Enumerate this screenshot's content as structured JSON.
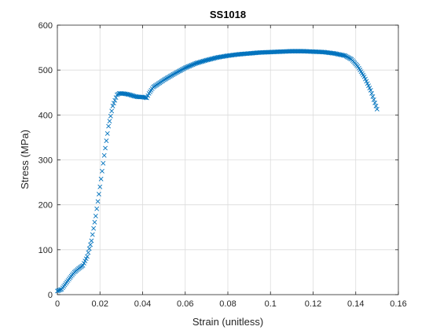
{
  "chart_data": {
    "type": "scatter",
    "title": "SS1018",
    "xlabel": "Strain (unitless)",
    "ylabel": "Stress (MPa)",
    "xlim": [
      0,
      0.16
    ],
    "ylim": [
      0,
      600
    ],
    "xticks": [
      0,
      0.02,
      0.04,
      0.06,
      0.08,
      0.1,
      0.12,
      0.14,
      0.16
    ],
    "xtick_labels": [
      "0",
      "0.02",
      "0.04",
      "0.06",
      "0.08",
      "0.1",
      "0.12",
      "0.14",
      "0.16"
    ],
    "yticks": [
      0,
      100,
      200,
      300,
      400,
      500,
      600
    ],
    "ytick_labels": [
      "0",
      "100",
      "200",
      "300",
      "400",
      "500",
      "600"
    ],
    "grid": true,
    "marker": "x",
    "color": "#0072BD",
    "x": [
      0.0,
      0.002,
      0.004,
      0.006,
      0.008,
      0.01,
      0.012,
      0.014,
      0.016,
      0.018,
      0.02,
      0.022,
      0.024,
      0.026,
      0.028,
      0.029,
      0.03,
      0.032,
      0.034,
      0.036,
      0.038,
      0.04,
      0.042,
      0.043,
      0.045,
      0.05,
      0.055,
      0.06,
      0.065,
      0.07,
      0.075,
      0.08,
      0.085,
      0.09,
      0.095,
      0.1,
      0.105,
      0.11,
      0.115,
      0.12,
      0.125,
      0.13,
      0.135,
      0.138,
      0.141,
      0.144,
      0.147,
      0.15
    ],
    "y": [
      8,
      12,
      25,
      38,
      50,
      58,
      65,
      85,
      120,
      175,
      240,
      310,
      375,
      420,
      445,
      448,
      448,
      447,
      445,
      442,
      440,
      440,
      438,
      448,
      462,
      478,
      492,
      505,
      515,
      522,
      528,
      532,
      535,
      537,
      539,
      540,
      541,
      542,
      542,
      541,
      540,
      537,
      532,
      524,
      508,
      485,
      455,
      413
    ]
  }
}
